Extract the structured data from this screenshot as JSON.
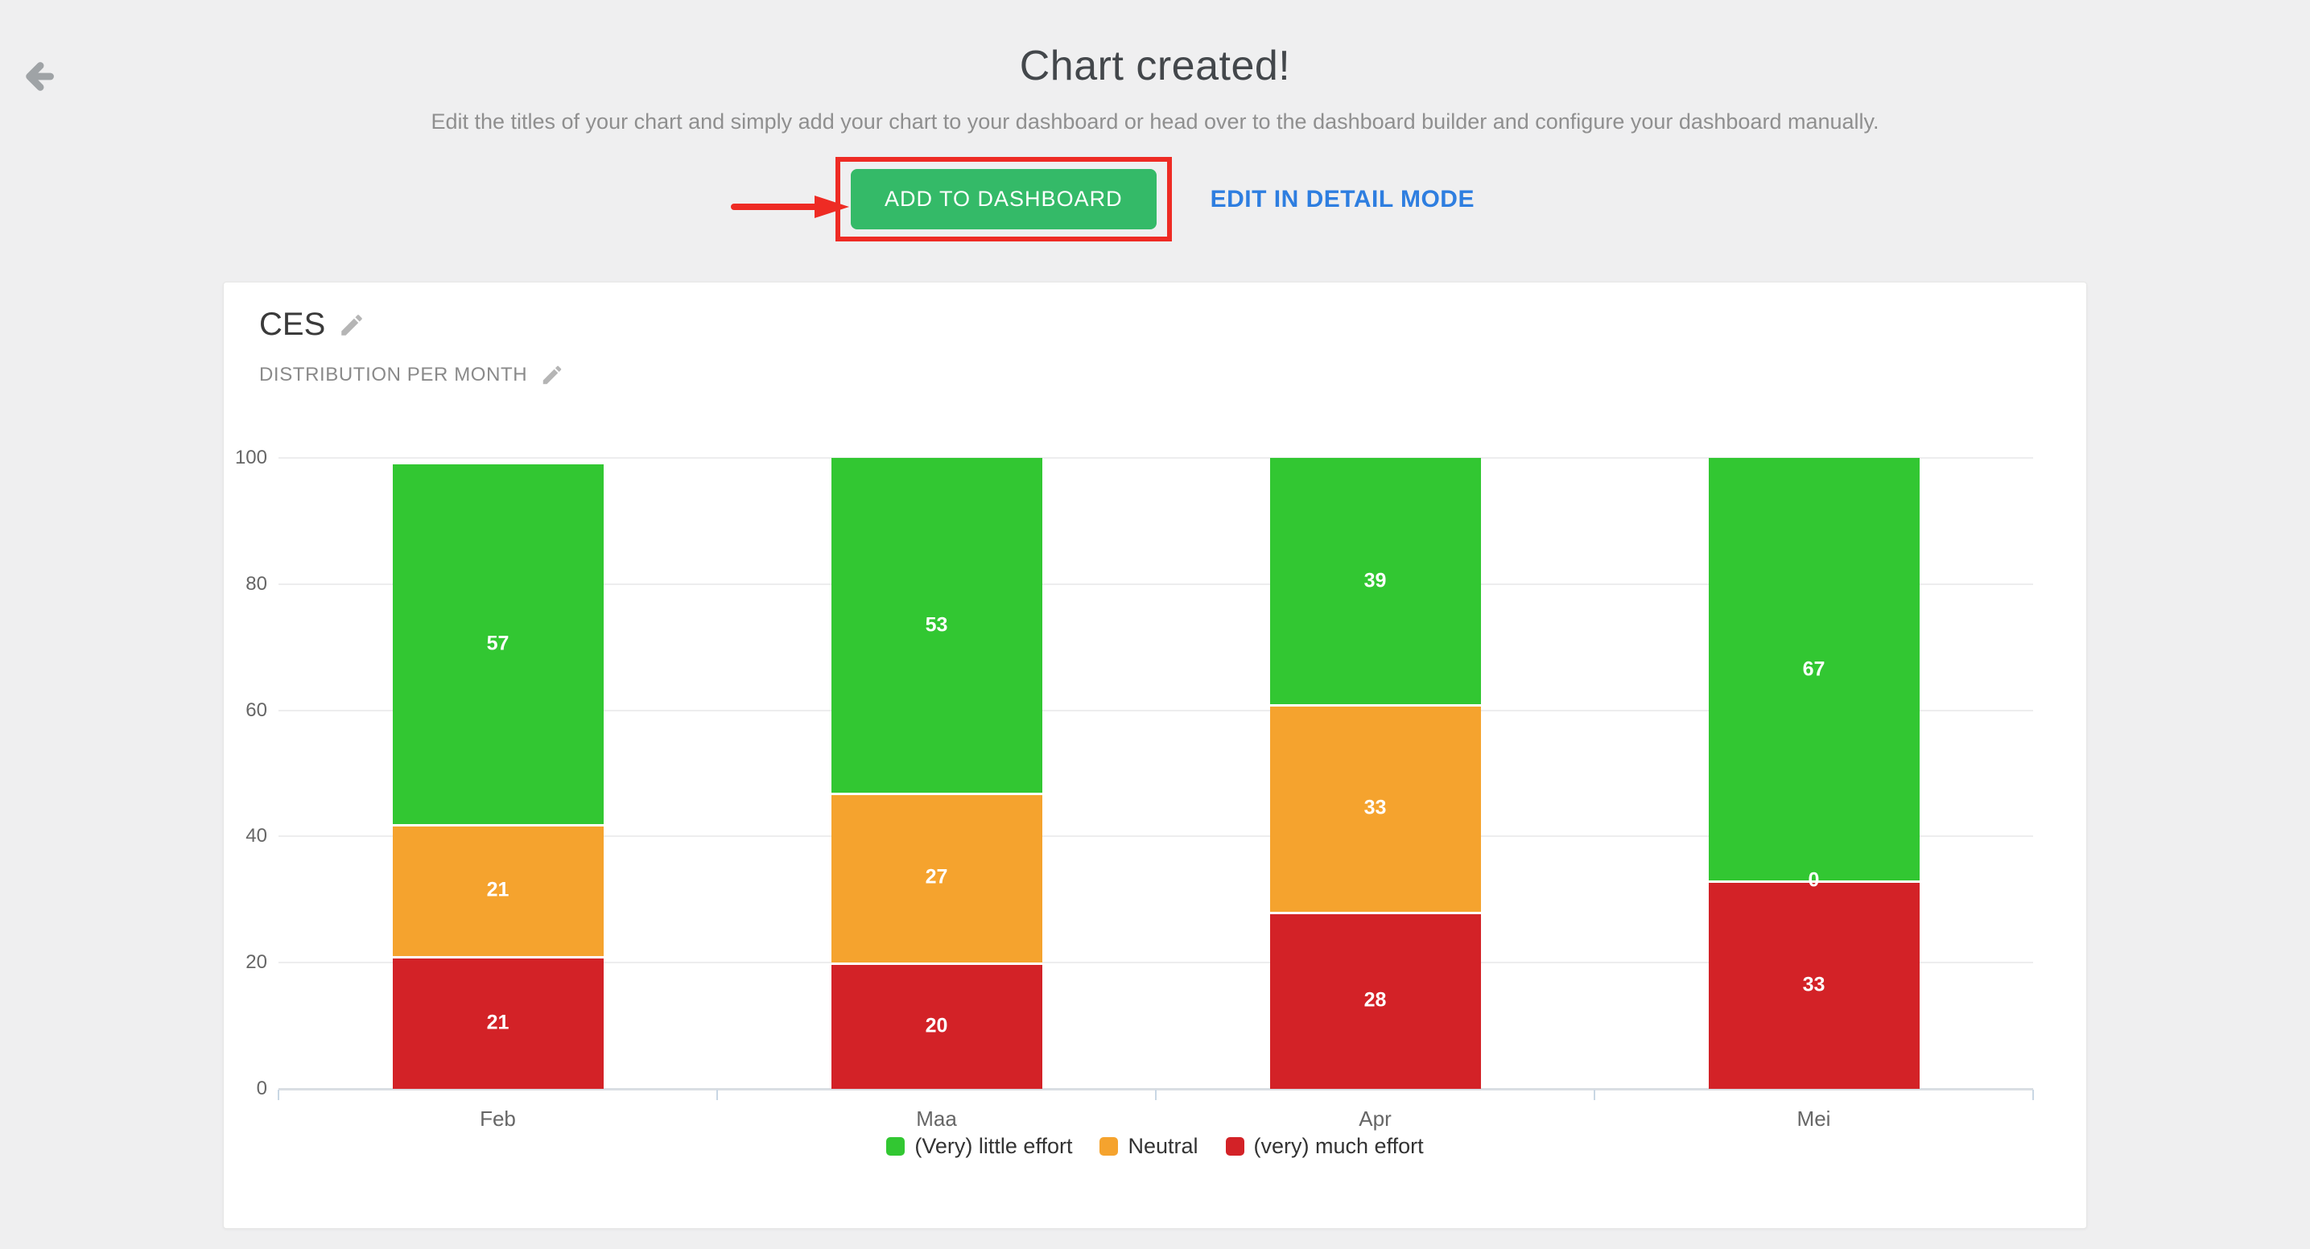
{
  "page": {
    "title": "Chart created!",
    "subtitle": "Edit the titles of your chart and simply add your chart to your dashboard or head over to the dashboard builder and configure your dashboard manually.",
    "background_color": "#efeff0"
  },
  "actions": {
    "add_to_dashboard_label": "ADD TO DASHBOARD",
    "edit_in_detail_label": "EDIT IN DETAIL MODE",
    "add_button_color": "#34ba68",
    "edit_link_color": "#2e7ee0",
    "annotation_color": "#ee2b24"
  },
  "card": {
    "title": "CES",
    "subtitle": "DISTRIBUTION PER MONTH"
  },
  "icons": {
    "back": "arrow-left-icon",
    "edit_title": "pencil-icon",
    "edit_subtitle": "pencil-icon"
  },
  "chart_data": {
    "type": "bar",
    "stacked": true,
    "title": "CES",
    "subtitle": "DISTRIBUTION PER MONTH",
    "categories": [
      "Feb",
      "Maa",
      "Apr",
      "Mei"
    ],
    "series": [
      {
        "name": "(very) much effort",
        "color": "#d32227",
        "values": [
          21,
          20,
          28,
          33
        ]
      },
      {
        "name": "Neutral",
        "color": "#f5a32e",
        "values": [
          21,
          27,
          33,
          0
        ]
      },
      {
        "name": "(Very) little effort",
        "color": "#32c732",
        "values": [
          57,
          53,
          39,
          67
        ]
      }
    ],
    "stack_order_bottom_to_top": [
      "(very) much effort",
      "Neutral",
      "(Very) little effort"
    ],
    "legend": [
      {
        "label": "(Very) little effort",
        "color": "#32c732"
      },
      {
        "label": "Neutral",
        "color": "#f5a32e"
      },
      {
        "label": "(very) much effort",
        "color": "#d32227"
      }
    ],
    "ylim": [
      0,
      100
    ],
    "yticks": [
      0,
      20,
      40,
      60,
      80,
      100
    ],
    "grid": true,
    "legend_position": "bottom",
    "value_labels": true
  }
}
